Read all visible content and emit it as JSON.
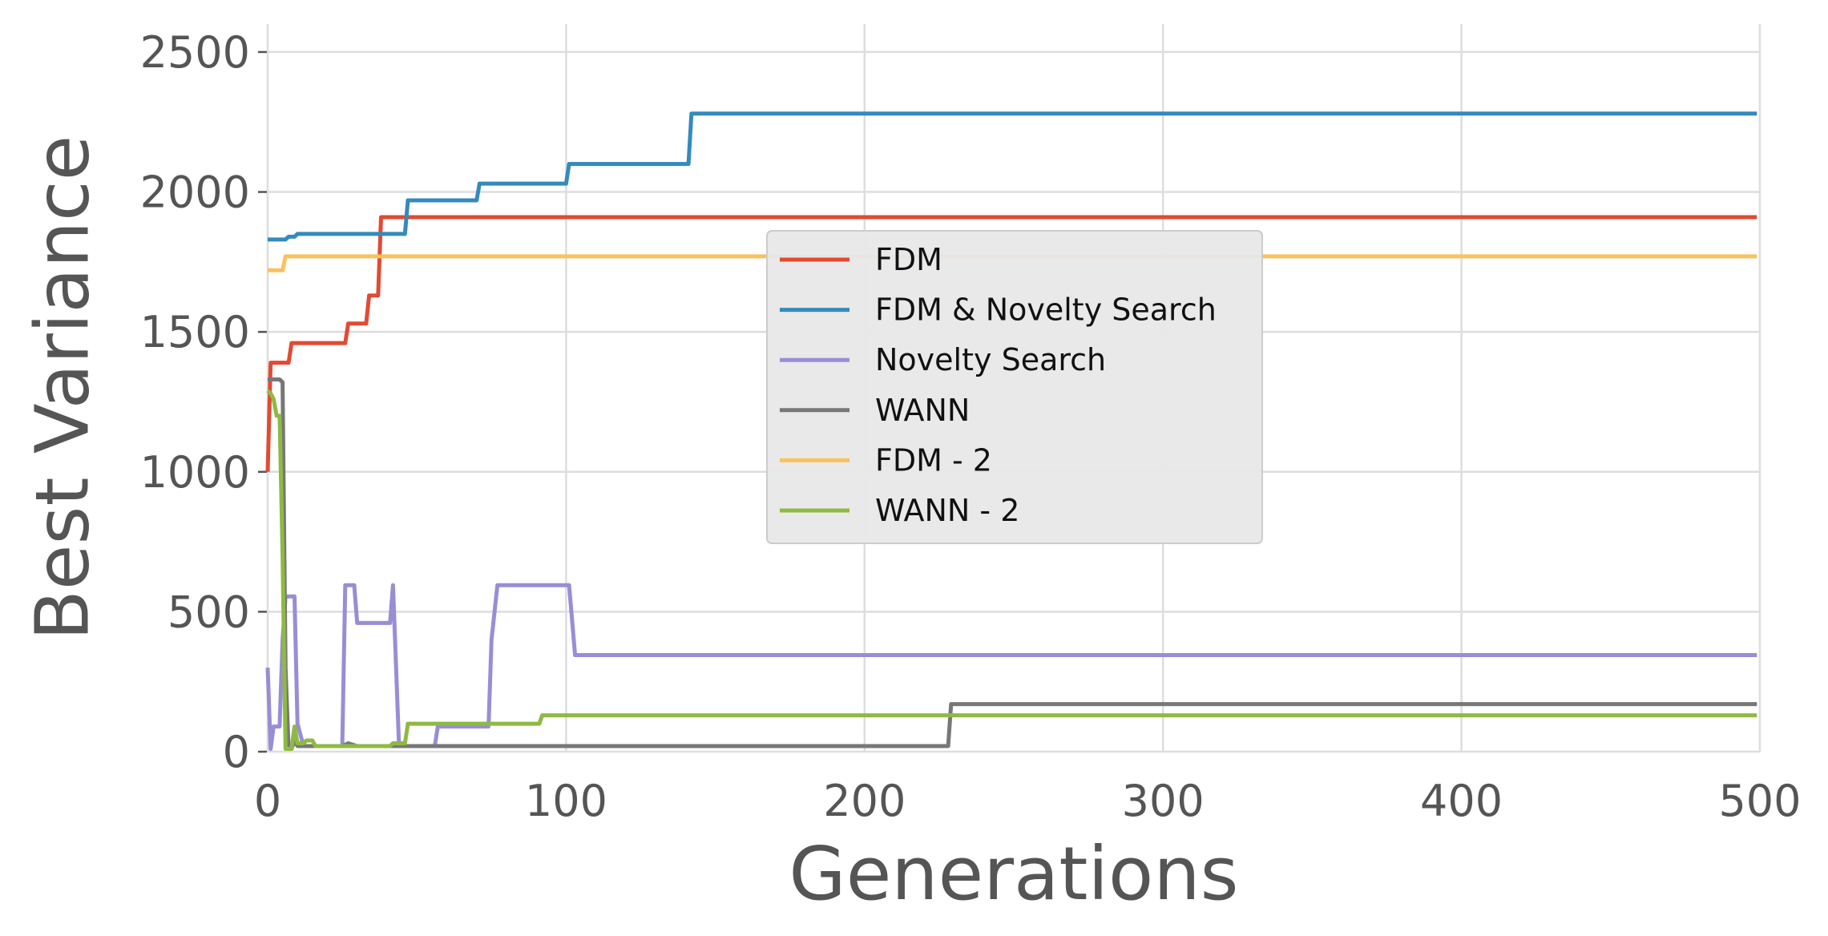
{
  "chart_data": {
    "type": "line",
    "title": "",
    "xlabel": "Generations",
    "ylabel": "Best Variance",
    "xlim": [
      0,
      500
    ],
    "ylim": [
      0,
      2600
    ],
    "xticks": [
      0,
      100,
      200,
      300,
      400,
      500
    ],
    "yticks": [
      0,
      500,
      1000,
      1500,
      2000,
      2500
    ],
    "xtick_labels": [
      "0",
      "100",
      "200",
      "300",
      "400",
      "500"
    ],
    "ytick_labels": [
      "0",
      "500",
      "1000",
      "1500",
      "2000",
      "2500"
    ],
    "grid": true,
    "legend_position": "center",
    "series": [
      {
        "name": "FDM",
        "color": "#E24A33",
        "points": [
          [
            0,
            1000
          ],
          [
            1,
            1390
          ],
          [
            7,
            1390
          ],
          [
            8,
            1460
          ],
          [
            26,
            1460
          ],
          [
            27,
            1530
          ],
          [
            33,
            1530
          ],
          [
            34,
            1630
          ],
          [
            37,
            1630
          ],
          [
            38,
            1910
          ],
          [
            499,
            1910
          ]
        ]
      },
      {
        "name": "FDM & Novelty Search",
        "color": "#348ABD",
        "points": [
          [
            0,
            1830
          ],
          [
            6,
            1830
          ],
          [
            7,
            1840
          ],
          [
            9,
            1840
          ],
          [
            10,
            1850
          ],
          [
            46,
            1850
          ],
          [
            47,
            1970
          ],
          [
            70,
            1970
          ],
          [
            71,
            2030
          ],
          [
            100,
            2030
          ],
          [
            101,
            2100
          ],
          [
            141,
            2100
          ],
          [
            142,
            2280
          ],
          [
            499,
            2280
          ]
        ]
      },
      {
        "name": "Novelty Search",
        "color": "#988ED5",
        "points": [
          [
            0,
            300
          ],
          [
            1,
            10
          ],
          [
            2,
            90
          ],
          [
            4,
            90
          ],
          [
            5,
            400
          ],
          [
            6,
            555
          ],
          [
            9,
            555
          ],
          [
            10,
            100
          ],
          [
            11,
            60
          ],
          [
            12,
            20
          ],
          [
            25,
            20
          ],
          [
            26,
            595
          ],
          [
            29,
            595
          ],
          [
            30,
            460
          ],
          [
            41,
            460
          ],
          [
            42,
            595
          ],
          [
            44,
            20
          ],
          [
            56,
            20
          ],
          [
            57,
            90
          ],
          [
            74,
            90
          ],
          [
            75,
            400
          ],
          [
            77,
            595
          ],
          [
            101,
            595
          ],
          [
            103,
            345
          ],
          [
            499,
            345
          ]
        ]
      },
      {
        "name": "WANN",
        "color": "#777777",
        "points": [
          [
            0,
            1330
          ],
          [
            1,
            1330
          ],
          [
            4,
            1330
          ],
          [
            5,
            1320
          ],
          [
            6,
            300
          ],
          [
            7,
            10
          ],
          [
            8,
            10
          ],
          [
            9,
            40
          ],
          [
            10,
            20
          ],
          [
            25,
            20
          ],
          [
            27,
            30
          ],
          [
            30,
            20
          ],
          [
            228,
            20
          ],
          [
            229,
            170
          ],
          [
            499,
            170
          ]
        ]
      },
      {
        "name": "FDM - 2",
        "color": "#FBC15E",
        "points": [
          [
            0,
            1720
          ],
          [
            5,
            1720
          ],
          [
            6,
            1770
          ],
          [
            499,
            1770
          ]
        ]
      },
      {
        "name": "WANN - 2",
        "color": "#8EBA42",
        "points": [
          [
            0,
            1290
          ],
          [
            1,
            1280
          ],
          [
            2,
            1260
          ],
          [
            3,
            1200
          ],
          [
            4,
            1200
          ],
          [
            5,
            700
          ],
          [
            6,
            10
          ],
          [
            8,
            10
          ],
          [
            9,
            90
          ],
          [
            10,
            30
          ],
          [
            12,
            30
          ],
          [
            13,
            40
          ],
          [
            15,
            40
          ],
          [
            16,
            20
          ],
          [
            41,
            20
          ],
          [
            42,
            30
          ],
          [
            46,
            30
          ],
          [
            47,
            100
          ],
          [
            91,
            100
          ],
          [
            92,
            130
          ],
          [
            499,
            130
          ]
        ]
      }
    ]
  }
}
